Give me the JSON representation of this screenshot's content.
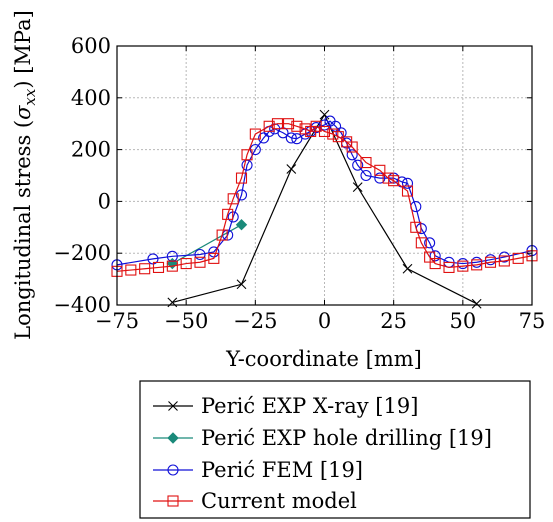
{
  "chart_data": {
    "type": "line",
    "xlabel": "Y-coordinate [mm]",
    "ylabel_parts": {
      "main": "Longitudinal stress (",
      "sym": "σ",
      "sub": "xx",
      "tail": ") [MPa]"
    },
    "xlim": [
      -75,
      75
    ],
    "ylim": [
      -400,
      600
    ],
    "x_ticks": [
      -75,
      -50,
      -25,
      0,
      25,
      50,
      75
    ],
    "y_ticks": [
      -400,
      -200,
      0,
      200,
      400,
      600
    ],
    "x_tick_labels": [
      "−75",
      "−50",
      "−25",
      "0",
      "25",
      "50",
      "75"
    ],
    "y_tick_labels": [
      "−400",
      "−200",
      "0",
      "200",
      "400",
      "600"
    ],
    "grid": true,
    "legend_position": "below",
    "series": [
      {
        "name": "Perić EXP X-ray [19]",
        "color": "#000000",
        "marker": "x",
        "x": [
          -55,
          -30,
          -12,
          0,
          12,
          30,
          55
        ],
        "y": [
          -390,
          -320,
          125,
          335,
          55,
          -260,
          -395
        ]
      },
      {
        "name": "Perić EXP hole drilling [19]",
        "color": "#1a8a7a",
        "marker": "diamond",
        "x": [
          -55,
          -30
        ],
        "y": [
          -240,
          -90
        ]
      },
      {
        "name": "Perić FEM [19]",
        "color": "#1010d8",
        "marker": "circle",
        "x": [
          -75,
          -62,
          -55,
          -45,
          -40,
          -35,
          -33,
          -30,
          -28,
          -25,
          -22,
          -20,
          -18,
          -15,
          -12,
          -10,
          -7,
          -5,
          -3,
          0,
          2,
          4,
          6,
          8,
          10,
          12,
          15,
          20,
          25,
          28,
          30,
          33,
          35,
          38,
          40,
          45,
          50,
          55,
          60,
          65,
          75
        ],
        "y": [
          -245,
          -222,
          -212,
          -205,
          -195,
          -130,
          -60,
          25,
          140,
          200,
          245,
          270,
          280,
          265,
          245,
          242,
          260,
          270,
          285,
          295,
          310,
          290,
          265,
          225,
          180,
          140,
          100,
          90,
          90,
          75,
          70,
          -20,
          -105,
          -160,
          -210,
          -235,
          -240,
          -235,
          -225,
          -215,
          -190
        ]
      },
      {
        "name": "Current model",
        "color": "#e01010",
        "marker": "square",
        "x": [
          -75,
          -70,
          -65,
          -60,
          -55,
          -50,
          -45,
          -40,
          -37,
          -35,
          -33,
          -30,
          -28,
          -25,
          -20,
          -17,
          -13,
          -10,
          -7,
          -5,
          -3,
          0,
          3,
          5,
          8,
          10,
          15,
          20,
          23,
          25,
          30,
          33,
          35,
          38,
          40,
          45,
          50,
          55,
          60,
          65,
          70,
          75
        ],
        "y": [
          -270,
          -265,
          -260,
          -255,
          -250,
          -240,
          -235,
          -220,
          -130,
          -50,
          10,
          90,
          180,
          260,
          290,
          300,
          300,
          290,
          280,
          270,
          290,
          270,
          260,
          250,
          230,
          210,
          150,
          120,
          90,
          80,
          40,
          -100,
          -160,
          -215,
          -240,
          -255,
          -250,
          -245,
          -235,
          -230,
          -220,
          -210
        ]
      }
    ]
  }
}
